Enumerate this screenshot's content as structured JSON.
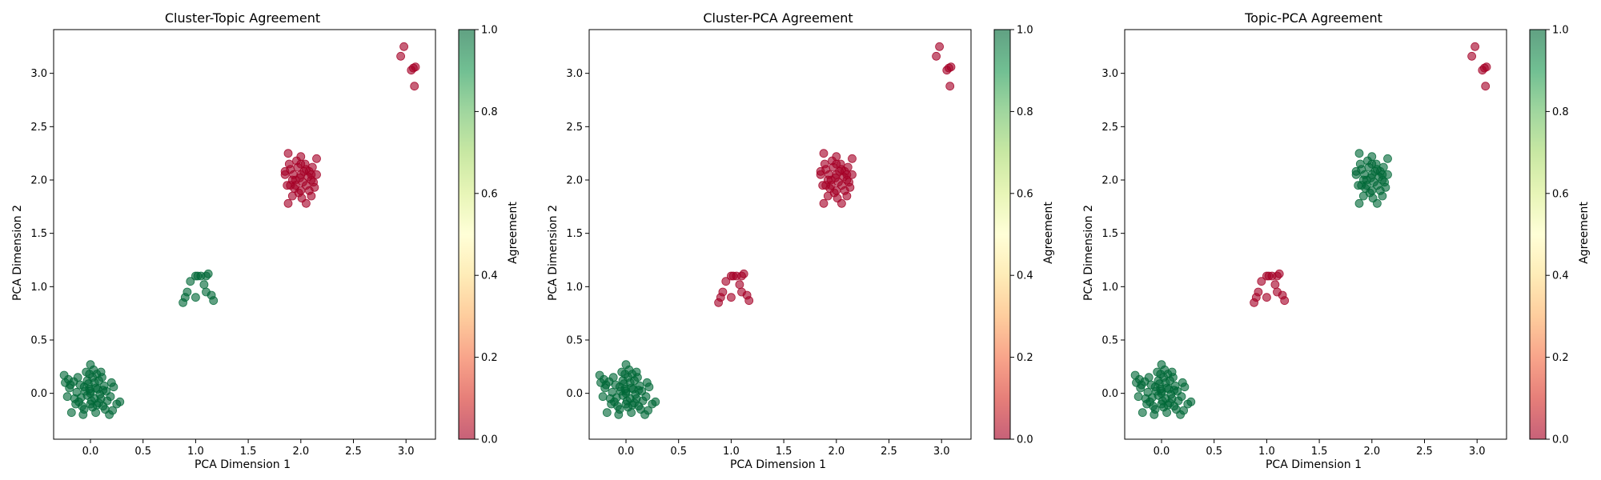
{
  "figure": {
    "colorbar_label": "Agreement",
    "colors": {
      "agree": "#006837",
      "disagree": "#a50026"
    }
  },
  "chart_data": [
    {
      "type": "scatter",
      "title": "Cluster-Topic Agreement",
      "xlabel": "PCA Dimension 1",
      "ylabel": "PCA Dimension 2",
      "xlim": [
        -0.35,
        3.28
      ],
      "ylim": [
        -0.43,
        3.41
      ],
      "colorbar": {
        "label": "Agreement",
        "range": [
          0,
          1
        ],
        "ticks": [
          "0.0",
          "0.2",
          "0.4",
          "0.6",
          "0.8",
          "1.0"
        ],
        "colormap": "RdYlGn"
      },
      "groups": {
        "A": 1,
        "B": 1,
        "C": 0,
        "D": 0
      }
    },
    {
      "type": "scatter",
      "title": "Cluster-PCA Agreement",
      "xlabel": "PCA Dimension 1",
      "ylabel": "PCA Dimension 2",
      "xlim": [
        -0.35,
        3.28
      ],
      "ylim": [
        -0.43,
        3.41
      ],
      "colorbar": {
        "label": "Agreement",
        "range": [
          0,
          1
        ],
        "ticks": [
          "0.0",
          "0.2",
          "0.4",
          "0.6",
          "0.8",
          "1.0"
        ],
        "colormap": "RdYlGn"
      },
      "groups": {
        "A": 1,
        "B": 0,
        "C": 0,
        "D": 0
      }
    },
    {
      "type": "scatter",
      "title": "Topic-PCA Agreement",
      "xlabel": "PCA Dimension 1",
      "ylabel": "PCA Dimension 2",
      "xlim": [
        -0.35,
        3.28
      ],
      "ylim": [
        -0.43,
        3.41
      ],
      "colorbar": {
        "label": "Agreement",
        "range": [
          0,
          1
        ],
        "ticks": [
          "0.0",
          "0.2",
          "0.4",
          "0.6",
          "0.8",
          "1.0"
        ],
        "colormap": "RdYlGn"
      },
      "groups": {
        "A": 1,
        "B": 0,
        "C": 1,
        "D": 0
      }
    }
  ],
  "points": {
    "A": [
      [
        0.0,
        0.0
      ],
      [
        0.05,
        0.05
      ],
      [
        -0.05,
        0.02
      ],
      [
        0.1,
        -0.05
      ],
      [
        -0.1,
        0.08
      ],
      [
        0.02,
        0.15
      ],
      [
        0.08,
        0.12
      ],
      [
        -0.15,
        -0.05
      ],
      [
        0.15,
        0.02
      ],
      [
        0.0,
        -0.1
      ],
      [
        -0.08,
        -0.12
      ],
      [
        0.12,
        -0.12
      ],
      [
        -0.2,
        0.05
      ],
      [
        0.2,
        0.1
      ],
      [
        0.05,
        -0.18
      ],
      [
        -0.12,
        0.15
      ],
      [
        0.03,
        0.22
      ],
      [
        -0.25,
        0.17
      ],
      [
        0.25,
        -0.1
      ],
      [
        0.18,
        -0.2
      ],
      [
        -0.18,
        -0.18
      ],
      [
        0.0,
        0.27
      ],
      [
        0.04,
        -0.05
      ],
      [
        -0.03,
        -0.02
      ],
      [
        0.07,
        0.04
      ],
      [
        -0.06,
        0.06
      ],
      [
        0.09,
        -0.01
      ],
      [
        -0.02,
        0.09
      ],
      [
        0.01,
        -0.07
      ],
      [
        -0.09,
        -0.04
      ],
      [
        0.13,
        0.07
      ],
      [
        -0.13,
        0.01
      ],
      [
        0.06,
        0.18
      ],
      [
        -0.06,
        -0.15
      ],
      [
        0.16,
        -0.07
      ],
      [
        -0.16,
        0.11
      ],
      [
        0.11,
        0.15
      ],
      [
        -0.22,
        -0.03
      ],
      [
        0.22,
        0.06
      ],
      [
        -0.04,
        0.2
      ],
      [
        0.04,
        0.1
      ],
      [
        -0.01,
        0.04
      ],
      [
        0.02,
        -0.13
      ],
      [
        -0.11,
        -0.08
      ],
      [
        0.14,
        -0.15
      ],
      [
        0.0,
        0.02
      ],
      [
        -0.03,
        0.12
      ],
      [
        0.08,
        -0.09
      ],
      [
        -0.19,
        0.08
      ],
      [
        0.1,
        0.2
      ],
      [
        -0.07,
        -0.2
      ],
      [
        0.19,
        -0.03
      ],
      [
        -0.24,
        0.1
      ],
      [
        0.28,
        -0.08
      ],
      [
        -0.14,
        -0.1
      ],
      [
        0.06,
        -0.11
      ],
      [
        -0.01,
        0.18
      ],
      [
        0.12,
        0.03
      ],
      [
        0.21,
        -0.16
      ],
      [
        -0.21,
        0.13
      ]
    ],
    "B": [
      [
        0.88,
        0.85
      ],
      [
        0.9,
        0.9
      ],
      [
        0.92,
        0.95
      ],
      [
        0.95,
        1.05
      ],
      [
        1.0,
        1.1
      ],
      [
        1.02,
        1.1
      ],
      [
        1.05,
        1.1
      ],
      [
        1.1,
        1.1
      ],
      [
        1.12,
        1.12
      ],
      [
        1.08,
        1.02
      ],
      [
        1.0,
        0.9
      ],
      [
        1.1,
        0.95
      ],
      [
        1.15,
        0.92
      ],
      [
        1.17,
        0.87
      ]
    ],
    "C": [
      [
        1.85,
        2.05
      ],
      [
        1.9,
        2.1
      ],
      [
        1.95,
        2.0
      ],
      [
        2.0,
        2.05
      ],
      [
        2.05,
        1.95
      ],
      [
        2.0,
        1.9
      ],
      [
        1.95,
        1.95
      ],
      [
        2.1,
        2.0
      ],
      [
        2.05,
        2.1
      ],
      [
        1.9,
        1.95
      ],
      [
        2.0,
        2.15
      ],
      [
        2.1,
        2.05
      ],
      [
        1.88,
        2.25
      ],
      [
        2.0,
        2.22
      ],
      [
        2.15,
        2.2
      ],
      [
        1.88,
        1.78
      ],
      [
        2.05,
        1.78
      ],
      [
        1.92,
        1.85
      ],
      [
        2.1,
        1.85
      ],
      [
        2.12,
        1.98
      ],
      [
        2.08,
        2.08
      ],
      [
        1.93,
        2.05
      ],
      [
        1.97,
        2.12
      ],
      [
        2.02,
        1.98
      ],
      [
        2.07,
        2.03
      ],
      [
        1.87,
        1.95
      ],
      [
        1.98,
        1.88
      ],
      [
        2.13,
        1.93
      ],
      [
        1.96,
        2.18
      ],
      [
        2.03,
        2.08
      ],
      [
        1.85,
        2.08
      ],
      [
        2.15,
        2.05
      ],
      [
        1.92,
        2.0
      ],
      [
        2.08,
        1.9
      ],
      [
        1.99,
        2.02
      ],
      [
        2.04,
        2.15
      ],
      [
        1.94,
        1.92
      ],
      [
        2.11,
        2.12
      ],
      [
        1.89,
        2.15
      ],
      [
        2.01,
        1.83
      ]
    ],
    "D": [
      [
        2.95,
        3.16
      ],
      [
        2.98,
        3.25
      ],
      [
        3.05,
        3.03
      ],
      [
        3.07,
        3.05
      ],
      [
        3.09,
        3.06
      ],
      [
        3.08,
        2.88
      ]
    ]
  }
}
